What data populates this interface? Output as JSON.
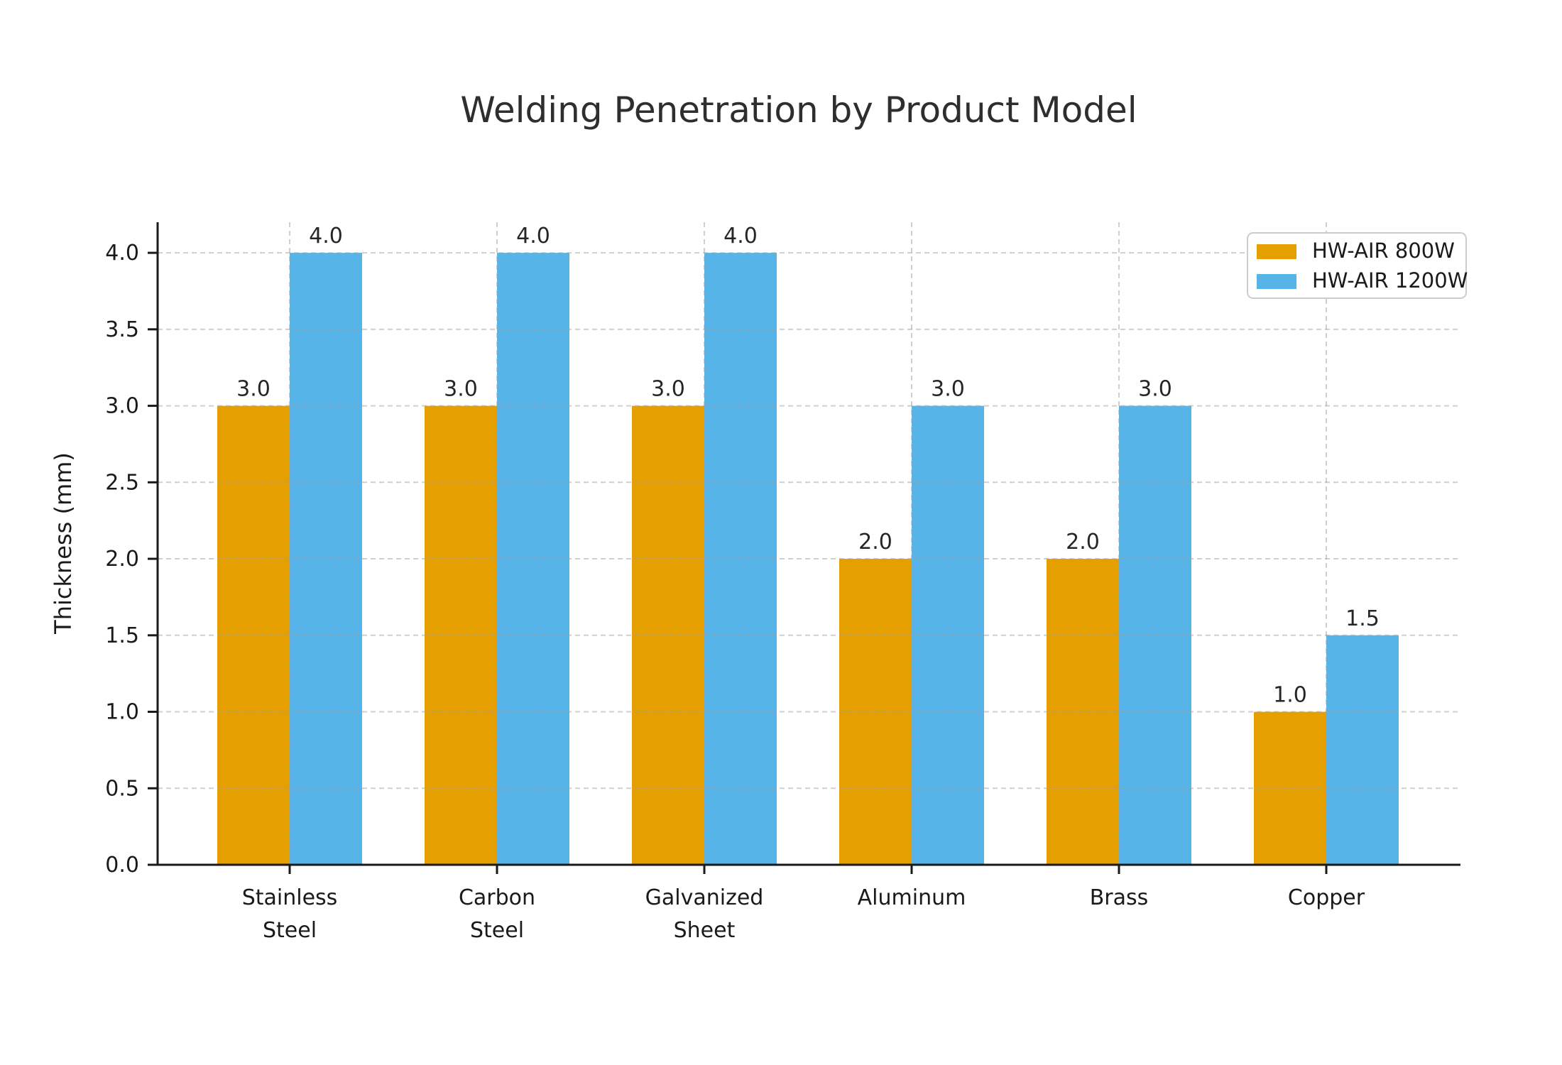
{
  "figure": {
    "background": "#ffffff"
  },
  "chart_data": {
    "type": "bar",
    "title": "Welding Penetration by Product Model",
    "xlabel": "",
    "ylabel": "Thickness (mm)",
    "categories": [
      "Stainless\nSteel",
      "Carbon\nSteel",
      "Galvanized\nSheet",
      "Aluminum",
      "Brass",
      "Copper"
    ],
    "series": [
      {
        "name": "HW-AIR 800W",
        "color": "#E69F00",
        "values": [
          3.0,
          3.0,
          3.0,
          2.0,
          2.0,
          1.0
        ]
      },
      {
        "name": "HW-AIR 1200W",
        "color": "#56B4E9",
        "values": [
          4.0,
          4.0,
          4.0,
          3.0,
          3.0,
          1.5
        ]
      }
    ],
    "ylim": [
      0,
      4.2
    ],
    "yticks": [
      0.0,
      0.5,
      1.0,
      1.5,
      2.0,
      2.5,
      3.0,
      3.5,
      4.0
    ],
    "ytick_labels": [
      "0.0",
      "0.5",
      "1.0",
      "1.5",
      "2.0",
      "2.5",
      "3.0",
      "3.5",
      "4.0"
    ],
    "grid": true,
    "grid_style": "dashed",
    "legend_position": "upper right",
    "bar_value_labels": true,
    "value_label_format": "one-decimal"
  }
}
